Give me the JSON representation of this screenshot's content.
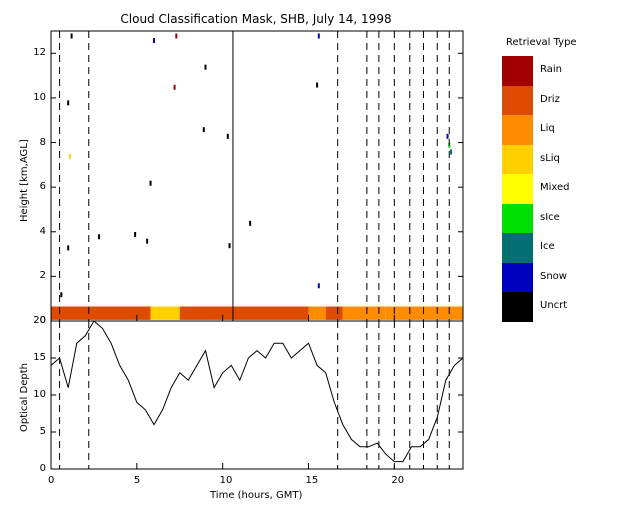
{
  "chart_data": [
    {
      "type": "heatmap",
      "title": "Cloud Classification Mask, SHB, July 14, 1998",
      "xlabel": "Time (hours, GMT)",
      "ylabel": "Height [km,AGL]",
      "xlim": [
        0,
        24
      ],
      "ylim": [
        0,
        13
      ],
      "xticks": [
        "0",
        "5",
        "10",
        "15",
        "20"
      ],
      "yticks": [
        "0",
        "2",
        "4",
        "6",
        "8",
        "10",
        "12"
      ],
      "legend_title": "Retrieval Type",
      "legend": [
        {
          "label": "Rain",
          "color": "#a00000"
        },
        {
          "label": "Driz",
          "color": "#dc4b00"
        },
        {
          "label": "Liq",
          "color": "#ff8c00"
        },
        {
          "label": "sLiq",
          "color": "#ffd000"
        },
        {
          "label": "Mixed",
          "color": "#ffff00"
        },
        {
          "label": "sIce",
          "color": "#00e000"
        },
        {
          "label": "Ice",
          "color": "#007070"
        },
        {
          "label": "Snow",
          "color": "#0000c0"
        },
        {
          "label": "Uncrt",
          "color": "#000000"
        }
      ],
      "cloud_layer": {
        "base_km": 0.05,
        "top_km": 0.65,
        "segments": [
          {
            "t0": 0.0,
            "t1": 5.8,
            "class": "Driz"
          },
          {
            "t0": 5.8,
            "t1": 7.5,
            "class": "sLiq"
          },
          {
            "t0": 7.5,
            "t1": 15.0,
            "class": "Driz"
          },
          {
            "t0": 15.0,
            "t1": 16.0,
            "class": "Liq"
          },
          {
            "t0": 16.0,
            "t1": 17.0,
            "class": "Driz"
          },
          {
            "t0": 17.0,
            "t1": 19.5,
            "class": "Liq"
          },
          {
            "t0": 19.5,
            "t1": 24.0,
            "class": "Liq"
          }
        ]
      },
      "sparse_returns": [
        {
          "t": 0.6,
          "h": 1.2,
          "class": "Uncrt"
        },
        {
          "t": 1.0,
          "h": 3.3,
          "class": "Uncrt"
        },
        {
          "t": 1.1,
          "h": 7.4,
          "class": "sLiq"
        },
        {
          "t": 1.0,
          "h": 9.8,
          "class": "Uncrt"
        },
        {
          "t": 1.2,
          "h": 12.8,
          "class": "Uncrt"
        },
        {
          "t": 2.8,
          "h": 3.8,
          "class": "Uncrt"
        },
        {
          "t": 4.9,
          "h": 3.9,
          "class": "Uncrt"
        },
        {
          "t": 5.6,
          "h": 3.6,
          "class": "Uncrt"
        },
        {
          "t": 5.8,
          "h": 6.2,
          "class": "Uncrt"
        },
        {
          "t": 6.0,
          "h": 12.6,
          "class": "Snow"
        },
        {
          "t": 7.2,
          "h": 10.5,
          "class": "Rain"
        },
        {
          "t": 7.3,
          "h": 12.8,
          "class": "Rain"
        },
        {
          "t": 8.9,
          "h": 8.6,
          "class": "Uncrt"
        },
        {
          "t": 9.0,
          "h": 11.4,
          "class": "Uncrt"
        },
        {
          "t": 10.3,
          "h": 8.3,
          "class": "Uncrt"
        },
        {
          "t": 10.4,
          "h": 3.4,
          "class": "Uncrt"
        },
        {
          "t": 11.6,
          "h": 4.4,
          "class": "Uncrt"
        },
        {
          "t": 15.5,
          "h": 10.6,
          "class": "Uncrt"
        },
        {
          "t": 15.6,
          "h": 12.8,
          "class": "Snow"
        },
        {
          "t": 15.6,
          "h": 1.6,
          "class": "Snow"
        },
        {
          "t": 23.1,
          "h": 8.3,
          "class": "Snow"
        },
        {
          "t": 23.2,
          "h": 7.9,
          "class": "sIce"
        },
        {
          "t": 23.3,
          "h": 7.6,
          "class": "Ice"
        }
      ],
      "dashed_lines_hours": [
        0.5,
        2.2,
        16.7,
        18.4,
        19.1,
        20.0,
        20.9,
        21.7,
        22.5,
        23.2
      ],
      "solid_line_hours": 10.6
    },
    {
      "type": "line",
      "xlabel": "Time (hours, GMT)",
      "ylabel": "Optical Depth",
      "xlim": [
        0,
        24
      ],
      "ylim": [
        0,
        20
      ],
      "xticks": [
        "0",
        "5",
        "10",
        "15",
        "20"
      ],
      "yticks": [
        "0",
        "5",
        "10",
        "15",
        "20"
      ],
      "x": [
        0,
        0.5,
        1,
        1.5,
        2,
        2.5,
        3,
        3.5,
        4,
        4.5,
        5,
        5.5,
        6,
        6.5,
        7,
        7.5,
        8,
        8.5,
        9,
        9.5,
        10,
        10.5,
        11,
        11.5,
        12,
        12.5,
        13,
        13.5,
        14,
        14.5,
        15,
        15.5,
        16,
        16.5,
        17,
        17.5,
        18,
        18.5,
        19,
        19.5,
        20,
        20.5,
        21,
        21.5,
        22,
        22.5,
        23,
        23.5,
        24
      ],
      "y": [
        14,
        15,
        11,
        17,
        18,
        20,
        19,
        17,
        14,
        12,
        9,
        8,
        6,
        8,
        11,
        13,
        12,
        14,
        16,
        11,
        13,
        14,
        12,
        15,
        16,
        15,
        17,
        17,
        15,
        16,
        17,
        14,
        13,
        9,
        6,
        4,
        3,
        3,
        3.5,
        2,
        1,
        1,
        3,
        3,
        4,
        7,
        12,
        14,
        15
      ],
      "dashed_lines_hours": [
        0.5,
        2.2,
        16.7,
        18.4,
        19.1,
        20.0,
        20.9,
        21.7,
        22.5,
        23.2
      ]
    }
  ]
}
